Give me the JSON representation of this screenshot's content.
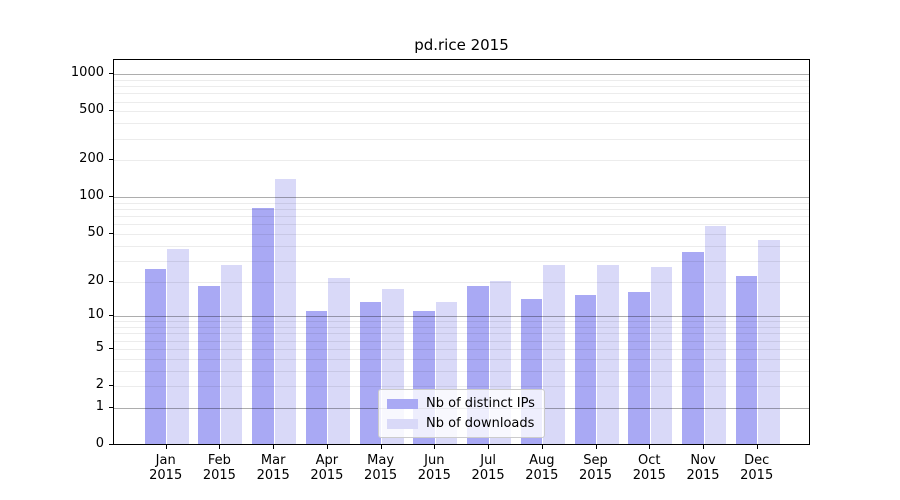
{
  "chart_data": {
    "type": "bar",
    "title": "pd.rice 2015",
    "categories": [
      "Jan",
      "Feb",
      "Mar",
      "Apr",
      "May",
      "Jun",
      "Jul",
      "Aug",
      "Sep",
      "Oct",
      "Nov",
      "Dec"
    ],
    "category_year": "2015",
    "series": [
      {
        "name": "Nb of distinct IPs",
        "color": "#a9a9f4",
        "values": [
          25,
          18,
          80,
          11,
          13,
          11,
          18,
          14,
          15,
          16,
          35,
          22
        ]
      },
      {
        "name": "Nb of downloads",
        "color": "#d9d9f8",
        "values": [
          37,
          27,
          138,
          21,
          17,
          13,
          20,
          27,
          27,
          26,
          57,
          44
        ]
      }
    ],
    "xlabel": "",
    "ylabel": "",
    "y_scale": "log1p",
    "ylim": [
      0,
      1300
    ],
    "y_tick_labels": [
      0,
      1,
      2,
      5,
      10,
      20,
      50,
      100,
      200,
      500,
      1000
    ],
    "y_major_gridlines": [
      1,
      10,
      100,
      1000
    ],
    "y_minor_gridlines": [
      2,
      3,
      4,
      5,
      6,
      7,
      8,
      9,
      20,
      30,
      40,
      50,
      60,
      70,
      80,
      90,
      200,
      300,
      400,
      500,
      600,
      700,
      800,
      900
    ],
    "grid": "on, drawn above bars",
    "legend_position": "inside lower-center",
    "colors": {
      "axis_line": "#000000",
      "tick_label": "#000000",
      "legend_border": "#cccccc",
      "legend_background": "rgba(255,255,255,0.8)",
      "plot_background": "#ffffff"
    }
  }
}
